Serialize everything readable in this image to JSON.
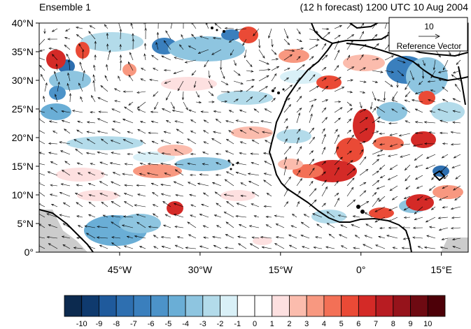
{
  "title_left": "Ensemble 1",
  "title_right": "(12 h forecast) 1200 UTC 10 Aug 2004",
  "map": {
    "lon_range": [
      -60,
      20
    ],
    "lat_range": [
      0,
      40
    ],
    "lat_ticks": [
      {
        "value": 0,
        "label": "0°"
      },
      {
        "value": 5,
        "label": "5°N"
      },
      {
        "value": 10,
        "label": "10°N"
      },
      {
        "value": 15,
        "label": "15°N"
      },
      {
        "value": 20,
        "label": "20°N"
      },
      {
        "value": 25,
        "label": "25°N"
      },
      {
        "value": 30,
        "label": "30°N"
      },
      {
        "value": 35,
        "label": "35°N"
      },
      {
        "value": 40,
        "label": "40°N"
      }
    ],
    "lon_ticks": [
      {
        "value": -45,
        "label": "45°W"
      },
      {
        "value": -30,
        "label": "30°W"
      },
      {
        "value": -15,
        "label": "15°W"
      },
      {
        "value": 0,
        "label": "0°"
      },
      {
        "value": 15,
        "label": "15°E"
      }
    ],
    "reference_vector": {
      "magnitude": "10",
      "label": "Reference Vector"
    }
  },
  "colorbar": {
    "levels": [
      "-10",
      "-9",
      "-8",
      "-7",
      "-6",
      "-5",
      "-4",
      "-3",
      "-2",
      "-1",
      "0",
      "1",
      "2",
      "3",
      "4",
      "5",
      "6",
      "7",
      "8",
      "9",
      "10"
    ],
    "colors": [
      "#0c2a4f",
      "#0f3a6e",
      "#1f5a9c",
      "#2e6fb0",
      "#3a7fbd",
      "#4c93c9",
      "#6aaed6",
      "#8ec5e0",
      "#b3dbea",
      "#d9f0f7",
      "#ffffff",
      "#ffffff",
      "#fde0e0",
      "#fbbcad",
      "#f89880",
      "#f37056",
      "#ea4a36",
      "#d42a27",
      "#b81c22",
      "#96131b",
      "#6e0a12",
      "#4d0008"
    ]
  }
}
